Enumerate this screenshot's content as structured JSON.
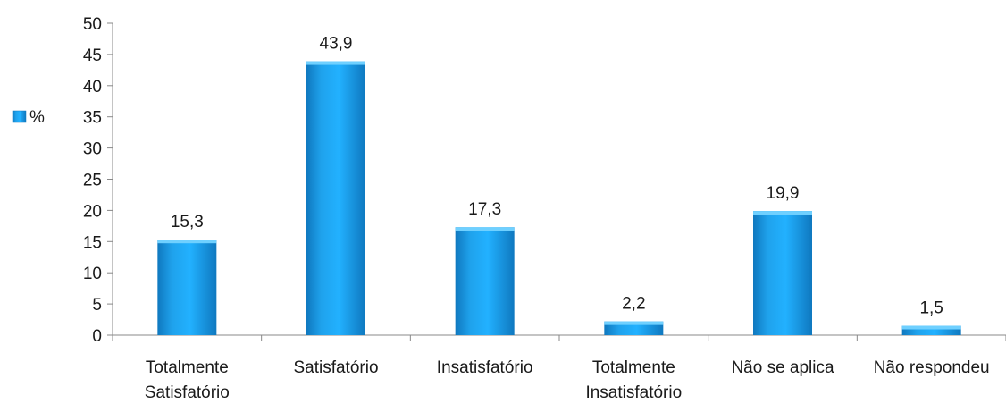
{
  "chart_data": {
    "type": "bar",
    "categories": [
      [
        "Totalmente",
        "Satisfatório"
      ],
      [
        "Satisfatório"
      ],
      [
        "Insatisfatório"
      ],
      [
        "Totalmente",
        "Insatisfatório"
      ],
      [
        "Não se aplica"
      ],
      [
        "Não respondeu"
      ]
    ],
    "series": [
      {
        "name": "%",
        "values": [
          15.3,
          43.9,
          17.3,
          2.2,
          19.9,
          1.5
        ]
      }
    ],
    "data_labels": [
      "15,3",
      "43,9",
      "17,3",
      "2,2",
      "19,9",
      "1,5"
    ],
    "yticks": [
      "0",
      "5",
      "10",
      "15",
      "20",
      "25",
      "30",
      "35",
      "40",
      "45",
      "50"
    ],
    "ylim": [
      0,
      50
    ],
    "legend": {
      "label": "%",
      "placement": "left"
    },
    "grid": false,
    "title": "",
    "xlabel": "",
    "ylabel": "",
    "colors": {
      "bar": "#1fa2ec",
      "bar_light": "#6fd0ff",
      "bar_dark": "#0f78bf",
      "axis": "#888888"
    }
  }
}
